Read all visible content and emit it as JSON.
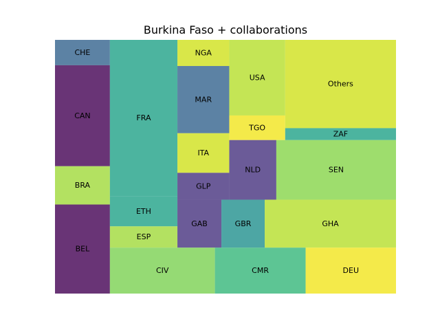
{
  "chart_data": {
    "type": "treemap",
    "title": "Burkina Faso + collaborations",
    "xlim": [
      0,
      100
    ],
    "ylim": [
      0,
      100
    ],
    "opacity": 0.8,
    "tiles": [
      {
        "label": "CHE",
        "x": 0.0,
        "y": 90.0,
        "w": 16.1,
        "h": 10.0,
        "color": "#33638d"
      },
      {
        "label": "CAN",
        "x": 0.0,
        "y": 50.2,
        "w": 16.1,
        "h": 39.8,
        "color": "#440154"
      },
      {
        "label": "BRA",
        "x": 0.0,
        "y": 35.1,
        "w": 16.1,
        "h": 15.1,
        "color": "#a0da39"
      },
      {
        "label": "BEL",
        "x": 0.0,
        "y": 0.0,
        "w": 16.1,
        "h": 35.1,
        "color": "#440154"
      },
      {
        "label": "FRA",
        "x": 16.1,
        "y": 38.4,
        "w": 19.8,
        "h": 61.6,
        "color": "#1fa187"
      },
      {
        "label": "ETH",
        "x": 16.1,
        "y": 26.5,
        "w": 19.8,
        "h": 11.9,
        "color": "#1fa187"
      },
      {
        "label": "ESP",
        "x": 16.1,
        "y": 18.1,
        "w": 19.8,
        "h": 8.4,
        "color": "#a0da39"
      },
      {
        "label": "NGA",
        "x": 35.9,
        "y": 89.7,
        "w": 15.2,
        "h": 10.3,
        "color": "#d0e11c"
      },
      {
        "label": "MAR",
        "x": 35.9,
        "y": 63.2,
        "w": 15.2,
        "h": 26.5,
        "color": "#33638d"
      },
      {
        "label": "ITA",
        "x": 35.9,
        "y": 47.6,
        "w": 15.2,
        "h": 15.6,
        "color": "#d0e11c"
      },
      {
        "label": "GLP",
        "x": 35.9,
        "y": 37.0,
        "w": 15.2,
        "h": 10.6,
        "color": "#46327e"
      },
      {
        "label": "USA",
        "x": 51.1,
        "y": 70.2,
        "w": 16.4,
        "h": 29.8,
        "color": "#b5de2b"
      },
      {
        "label": "TGO",
        "x": 51.1,
        "y": 60.5,
        "w": 16.4,
        "h": 9.7,
        "color": "#f1e51d"
      },
      {
        "label": "NLD",
        "x": 51.1,
        "y": 37.0,
        "w": 13.8,
        "h": 23.5,
        "color": "#46327e"
      },
      {
        "label": "Others",
        "x": 67.5,
        "y": 65.2,
        "w": 32.5,
        "h": 34.8,
        "color": "#d0e11c"
      },
      {
        "label": "ZAF",
        "x": 67.5,
        "y": 60.5,
        "w": 32.5,
        "h": 4.7,
        "color": "#1fa187"
      },
      {
        "label": "SEN",
        "x": 64.9,
        "y": 37.0,
        "w": 35.1,
        "h": 23.5,
        "color": "#86d549"
      },
      {
        "label": "GAB",
        "x": 35.9,
        "y": 18.1,
        "w": 12.9,
        "h": 18.9,
        "color": "#46327e"
      },
      {
        "label": "GBR",
        "x": 48.8,
        "y": 18.1,
        "w": 12.7,
        "h": 18.9,
        "color": "#21908d"
      },
      {
        "label": "GHA",
        "x": 61.5,
        "y": 18.1,
        "w": 38.5,
        "h": 18.9,
        "color": "#b5de2b"
      },
      {
        "label": "CIV",
        "x": 16.1,
        "y": 0.0,
        "w": 30.8,
        "h": 18.1,
        "color": "#7ad151"
      },
      {
        "label": "CMR",
        "x": 46.9,
        "y": 0.0,
        "w": 26.6,
        "h": 18.1,
        "color": "#35b779"
      },
      {
        "label": "DEU",
        "x": 73.5,
        "y": 0.0,
        "w": 26.5,
        "h": 18.1,
        "color": "#f1e51d"
      }
    ]
  }
}
